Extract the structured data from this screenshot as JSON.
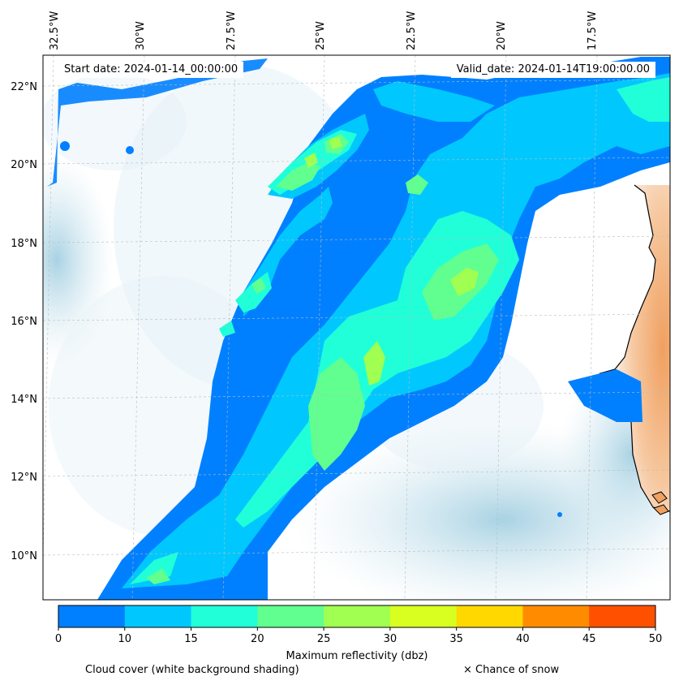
{
  "map": {
    "longitude_labels": [
      "32.5°W",
      "30°W",
      "27.5°W",
      "25°W",
      "22.5°W",
      "20°W",
      "17.5°W"
    ],
    "latitude_labels": [
      "22°N",
      "20°N",
      "18°N",
      "16°N",
      "14°N",
      "12°N",
      "10°N"
    ],
    "start_date": "Start date: 2024-01-14_00:00:00",
    "valid_date": "Valid_date: 2024-01-14T19:00:00.00",
    "land_color": "#f0a060",
    "cloud_color": "#a9d3e2",
    "coastline_color": "#000000"
  },
  "colorbar": {
    "title": "Maximum reflectivity (dbz)",
    "ticks": [
      "0",
      "10",
      "15",
      "20",
      "25",
      "30",
      "35",
      "40",
      "45",
      "50"
    ],
    "colors": [
      "#0080ff",
      "#00c8ff",
      "#20ffd8",
      "#60ff90",
      "#a0ff50",
      "#d8ff20",
      "#ffd800",
      "#ff8c00",
      "#ff5000"
    ]
  },
  "legend": {
    "cloud_cover": "Cloud cover (white background shading)",
    "snow": "× Chance of snow"
  }
}
